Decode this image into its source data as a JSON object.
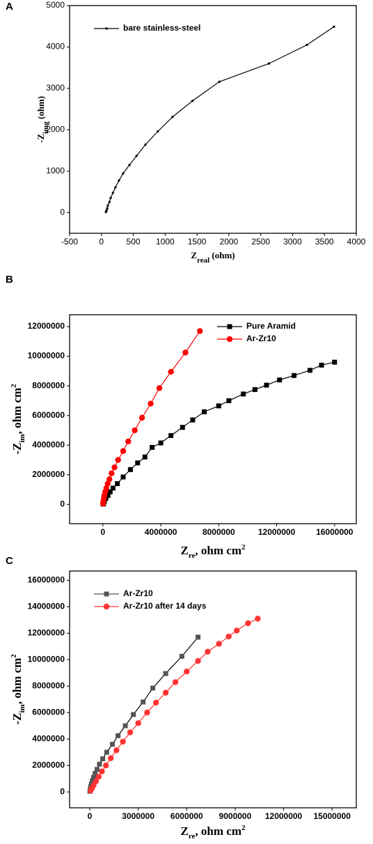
{
  "chart_data": [
    {
      "type": "line",
      "label": "A",
      "legend": "upper left",
      "grid": false,
      "xlabel": [
        {
          "text": "Z"
        },
        {
          "text": "real",
          "baseline": "sub"
        },
        {
          "text": " (ohm)"
        }
      ],
      "ylabel": [
        {
          "text": "-Z"
        },
        {
          "text": "img",
          "baseline": "sub"
        },
        {
          "text": " (ohm)"
        }
      ],
      "xlim": [
        -500,
        4000
      ],
      "xticks": [
        -500,
        0,
        500,
        1000,
        1500,
        2000,
        2500,
        3000,
        3500,
        4000
      ],
      "ylim": [
        -500,
        5000
      ],
      "yticks": [
        0,
        1000,
        2000,
        3000,
        4000,
        5000
      ],
      "series": [
        {
          "name": "bare stainless-steel",
          "color": "#000000",
          "marker": "square",
          "x": [
            3650,
            3225,
            2630,
            1850,
            1430,
            1115,
            885,
            690,
            550,
            440,
            340,
            275,
            220,
            180,
            145,
            125,
            100,
            90,
            80,
            70
          ],
          "values": [
            4490,
            4050,
            3600,
            3160,
            2700,
            2310,
            1960,
            1640,
            1370,
            1150,
            945,
            775,
            610,
            475,
            355,
            255,
            170,
            100,
            50,
            15
          ]
        }
      ]
    },
    {
      "type": "line",
      "label": "B",
      "legend": "upper right",
      "grid": false,
      "xlabel": [
        {
          "text": "Z"
        },
        {
          "text": "re",
          "baseline": "sub"
        },
        {
          "text": ", ohm cm"
        },
        {
          "text": "2",
          "baseline": "super"
        }
      ],
      "ylabel": [
        {
          "text": "-Z"
        },
        {
          "text": "im",
          "baseline": "sub"
        },
        {
          "text": ", ohm cm"
        },
        {
          "text": "2",
          "baseline": "super"
        }
      ],
      "xlim": [
        -2300000,
        17500000
      ],
      "xticks": [
        0,
        4000000,
        8000000,
        12000000,
        16000000
      ],
      "ylim": [
        -1300000,
        12800000
      ],
      "yticks": [
        0,
        2000000,
        4000000,
        6000000,
        8000000,
        10000000,
        12000000
      ],
      "series": [
        {
          "name": "Pure Aramid",
          "color": "#000000",
          "marker": "square",
          "x": [
            16000000,
            15100000,
            14300000,
            13200000,
            12200000,
            11300000,
            10500000,
            9700000,
            8700000,
            8000000,
            7000000,
            6200000,
            5500000,
            4700000,
            4000000,
            3400000,
            2900000,
            2400000,
            1900000,
            1400000,
            1000000,
            700000,
            500000,
            350000,
            200000,
            100000,
            50000,
            20000
          ],
          "values": [
            9600000,
            9400000,
            9050000,
            8700000,
            8400000,
            8050000,
            7750000,
            7450000,
            7000000,
            6650000,
            6250000,
            5700000,
            5200000,
            4650000,
            4150000,
            3850000,
            3200000,
            2800000,
            2350000,
            1850000,
            1400000,
            1100000,
            850000,
            600000,
            400000,
            200000,
            80000,
            20000
          ]
        },
        {
          "name": "Ar-Zr10",
          "color": "#ff0000",
          "marker": "circle",
          "x": [
            6700000,
            5700000,
            4700000,
            3900000,
            3300000,
            2700000,
            2200000,
            1750000,
            1400000,
            1050000,
            800000,
            600000,
            450000,
            330000,
            240000,
            160000,
            100000,
            60000,
            30000,
            10000
          ],
          "values": [
            11700000,
            10250000,
            8950000,
            7850000,
            6800000,
            5850000,
            5000000,
            4250000,
            3600000,
            3000000,
            2500000,
            2100000,
            1700000,
            1400000,
            1100000,
            850000,
            600000,
            400000,
            200000,
            50000
          ]
        }
      ]
    },
    {
      "type": "line",
      "label": "C",
      "legend": "upper left",
      "grid": false,
      "xlabel": [
        {
          "text": "Z"
        },
        {
          "text": "re",
          "baseline": "sub"
        },
        {
          "text": ", ohm cm"
        },
        {
          "text": "2",
          "baseline": "super"
        }
      ],
      "ylabel": [
        {
          "text": "-Z"
        },
        {
          "text": "im",
          "baseline": "sub"
        },
        {
          "text": ", ohm cm"
        },
        {
          "text": "2",
          "baseline": "super"
        }
      ],
      "xlim": [
        -1250000,
        16500000
      ],
      "xticks": [
        0,
        3000000,
        6000000,
        9000000,
        12000000,
        15000000
      ],
      "ylim": [
        -1200000,
        16700000
      ],
      "yticks": [
        0,
        2000000,
        4000000,
        6000000,
        8000000,
        10000000,
        12000000,
        14000000,
        16000000
      ],
      "series": [
        {
          "name": "Ar-Zr10",
          "color": "#555555",
          "marker": "square",
          "x": [
            6700000,
            5700000,
            4700000,
            3900000,
            3300000,
            2700000,
            2200000,
            1750000,
            1400000,
            1050000,
            800000,
            600000,
            450000,
            330000,
            240000,
            160000,
            100000,
            60000,
            30000,
            10000
          ],
          "values": [
            11700000,
            10250000,
            8950000,
            7850000,
            6800000,
            5850000,
            5000000,
            4250000,
            3600000,
            3000000,
            2500000,
            2100000,
            1700000,
            1400000,
            1100000,
            850000,
            600000,
            400000,
            200000,
            50000
          ]
        },
        {
          "name": "Ar-Zr10 after 14 days",
          "color": "#ff3333",
          "marker": "circle",
          "x": [
            10400000,
            9800000,
            9100000,
            8600000,
            8000000,
            7300000,
            6700000,
            6000000,
            5300000,
            4700000,
            4100000,
            3550000,
            3000000,
            2500000,
            2050000,
            1650000,
            1300000,
            1000000,
            750000,
            550000,
            380000,
            240000,
            130000,
            50000
          ],
          "values": [
            13100000,
            12750000,
            12200000,
            11750000,
            11200000,
            10600000,
            9900000,
            9100000,
            8300000,
            7500000,
            6750000,
            6000000,
            5200000,
            4500000,
            3800000,
            3150000,
            2550000,
            2000000,
            1550000,
            1150000,
            800000,
            500000,
            270000,
            100000
          ]
        }
      ]
    }
  ]
}
